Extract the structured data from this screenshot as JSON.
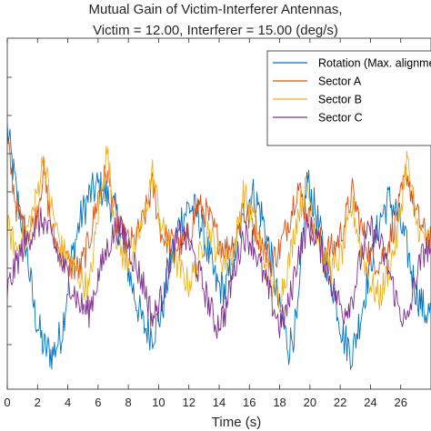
{
  "chart_data": {
    "type": "line",
    "title": [
      "Mutual Gain of Victim-Interferer Antennas,",
      "Victim = 12.00, Interferer = 15.00 (deg/s)"
    ],
    "xlabel": "Time (s)",
    "ylabel": "",
    "xlim": [
      0,
      28
    ],
    "xticks": [
      "0",
      "2",
      "4",
      "6",
      "8",
      "10",
      "12",
      "14",
      "16",
      "18",
      "20",
      "22",
      "24",
      "26"
    ],
    "grid": false,
    "legend_position": "top-right",
    "series": [
      {
        "name": "Rotation (Max. alignment)",
        "color": "#0072BD",
        "x": [
          0,
          0.6,
          1.2,
          1.8,
          2.4,
          3.0,
          3.6,
          4.2,
          4.8,
          5.4,
          6.0,
          6.6,
          7.2,
          7.8,
          8.4,
          9.0,
          9.6,
          10.2,
          10.8,
          11.4,
          12.0,
          12.6,
          13.2,
          13.8,
          14.4,
          15.0,
          15.6,
          16.2,
          16.8,
          17.4,
          18.0,
          18.6,
          19.2,
          19.8,
          20.4,
          21.0,
          21.6,
          22.2,
          22.8,
          23.4,
          24.0,
          24.6,
          25.2,
          25.8,
          26.4,
          27.0,
          27.6
        ],
        "values": [
          0.74,
          0.56,
          0.42,
          0.22,
          0.12,
          0.1,
          0.16,
          0.36,
          0.48,
          0.55,
          0.58,
          0.55,
          0.5,
          0.38,
          0.27,
          0.18,
          0.16,
          0.22,
          0.36,
          0.48,
          0.52,
          0.5,
          0.4,
          0.3,
          0.28,
          0.38,
          0.5,
          0.56,
          0.5,
          0.38,
          0.22,
          0.12,
          0.2,
          0.6,
          0.5,
          0.38,
          0.28,
          0.15,
          0.1,
          0.22,
          0.36,
          0.48,
          0.54,
          0.5,
          0.4,
          0.28,
          0.22
        ]
      },
      {
        "name": "Sector A",
        "color": "#D95319",
        "x": [
          0,
          0.6,
          1.2,
          1.8,
          2.4,
          3.0,
          3.6,
          4.2,
          4.8,
          5.4,
          6.0,
          6.6,
          7.2,
          7.8,
          8.4,
          9.0,
          9.6,
          10.2,
          10.8,
          11.4,
          12.0,
          12.6,
          13.2,
          13.8,
          14.4,
          15.0,
          15.6,
          16.2,
          16.8,
          17.4,
          18.0,
          18.6,
          19.2,
          19.8,
          20.4,
          21.0,
          21.6,
          22.2,
          22.8,
          23.4,
          24.0,
          24.6,
          25.2,
          25.8,
          26.4,
          27.0,
          27.6
        ],
        "values": [
          0.7,
          0.52,
          0.45,
          0.47,
          0.62,
          0.44,
          0.38,
          0.35,
          0.34,
          0.42,
          0.55,
          0.62,
          0.48,
          0.42,
          0.42,
          0.48,
          0.58,
          0.44,
          0.42,
          0.4,
          0.44,
          0.52,
          0.5,
          0.44,
          0.4,
          0.42,
          0.5,
          0.48,
          0.42,
          0.36,
          0.4,
          0.48,
          0.58,
          0.5,
          0.44,
          0.4,
          0.4,
          0.46,
          0.56,
          0.46,
          0.38,
          0.36,
          0.42,
          0.5,
          0.62,
          0.5,
          0.44
        ]
      },
      {
        "name": "Sector B",
        "color": "#EDB120",
        "x": [
          0,
          0.6,
          1.2,
          1.8,
          2.4,
          3.0,
          3.6,
          4.2,
          4.8,
          5.4,
          6.0,
          6.6,
          7.2,
          7.8,
          8.4,
          9.0,
          9.6,
          10.2,
          10.8,
          11.4,
          12.0,
          12.6,
          13.2,
          13.8,
          14.4,
          15.0,
          15.6,
          16.2,
          16.8,
          17.4,
          18.0,
          18.6,
          19.2,
          19.8,
          20.4,
          21.0,
          21.6,
          22.2,
          22.8,
          23.4,
          24.0,
          24.6,
          25.2,
          25.8,
          26.4,
          27.0,
          27.6
        ],
        "values": [
          0.46,
          0.4,
          0.44,
          0.52,
          0.66,
          0.5,
          0.4,
          0.36,
          0.32,
          0.28,
          0.5,
          0.68,
          0.44,
          0.36,
          0.4,
          0.48,
          0.62,
          0.46,
          0.4,
          0.34,
          0.3,
          0.36,
          0.46,
          0.4,
          0.36,
          0.4,
          0.56,
          0.5,
          0.4,
          0.3,
          0.26,
          0.36,
          0.5,
          0.58,
          0.46,
          0.36,
          0.34,
          0.4,
          0.52,
          0.4,
          0.3,
          0.26,
          0.34,
          0.44,
          0.66,
          0.48,
          0.42
        ]
      },
      {
        "name": "Sector C",
        "color": "#7E2F8E",
        "x": [
          0,
          0.6,
          1.2,
          1.8,
          2.4,
          3.0,
          3.6,
          4.2,
          4.8,
          5.4,
          6.0,
          6.6,
          7.2,
          7.8,
          8.4,
          9.0,
          9.6,
          10.2,
          10.8,
          11.4,
          12.0,
          12.6,
          13.2,
          13.8,
          14.4,
          15.0,
          15.6,
          16.2,
          16.8,
          17.4,
          18.0,
          18.6,
          19.2,
          19.8,
          20.4,
          21.0,
          21.6,
          22.2,
          22.8,
          23.4,
          24.0,
          24.6,
          25.2,
          25.8,
          26.4,
          27.0,
          27.6
        ],
        "values": [
          0.28,
          0.36,
          0.42,
          0.46,
          0.48,
          0.42,
          0.36,
          0.3,
          0.24,
          0.22,
          0.32,
          0.4,
          0.46,
          0.44,
          0.36,
          0.3,
          0.2,
          0.26,
          0.38,
          0.44,
          0.42,
          0.34,
          0.26,
          0.18,
          0.22,
          0.34,
          0.44,
          0.42,
          0.34,
          0.26,
          0.18,
          0.24,
          0.38,
          0.46,
          0.44,
          0.36,
          0.28,
          0.22,
          0.26,
          0.38,
          0.46,
          0.42,
          0.34,
          0.24,
          0.18,
          0.32,
          0.4
        ]
      }
    ]
  }
}
